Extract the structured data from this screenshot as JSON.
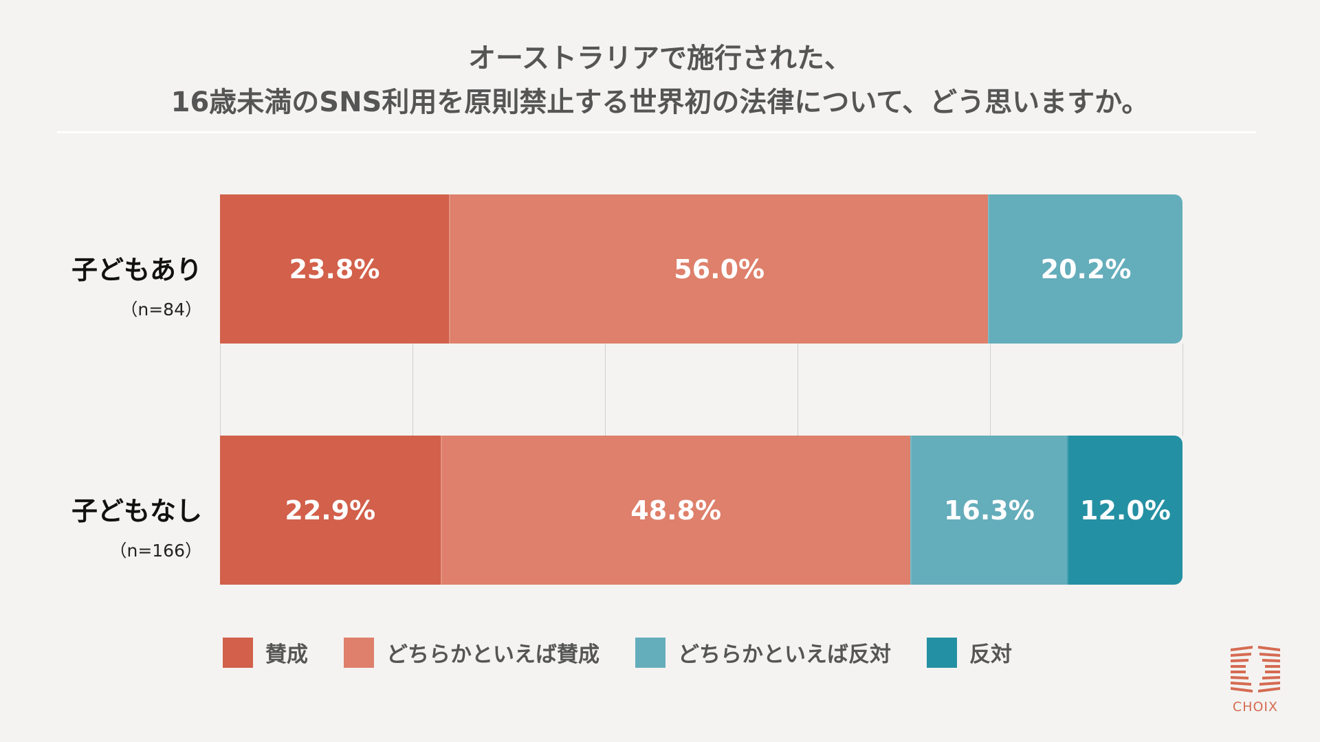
{
  "chart_data": {
    "type": "bar",
    "orientation": "horizontal",
    "stacked": true,
    "title": [
      "オーストラリアで施行された、",
      "16歳未満のSNS利用を原則禁止する世界初の法律について、どう思いますか。"
    ],
    "categories": [
      {
        "label": "子どもあり",
        "n": "（n=84）"
      },
      {
        "label": "子どもなし",
        "n": "（n=166）"
      }
    ],
    "series": [
      {
        "name": "賛成",
        "color": "#d2604a",
        "values": [
          23.8,
          22.9
        ],
        "labels": [
          "23.8%",
          "22.9%"
        ]
      },
      {
        "name": "どちらかといえば賛成",
        "color": "#de806b",
        "values": [
          56.0,
          48.8
        ],
        "labels": [
          "56.0%",
          "48.8%"
        ]
      },
      {
        "name": "どちらかといえば反対",
        "color": "#64adbb",
        "values": [
          20.2,
          16.3
        ],
        "labels": [
          "20.2%",
          "16.3%"
        ]
      },
      {
        "name": "反対",
        "color": "#2490a3",
        "values": [
          0,
          12.0
        ],
        "labels": [
          "",
          "12.0%"
        ]
      }
    ],
    "xlim": [
      0,
      100
    ],
    "grid": true,
    "legend": "bottom"
  },
  "brand": {
    "logo_text": "CHOIX",
    "color": "#d56b52"
  }
}
